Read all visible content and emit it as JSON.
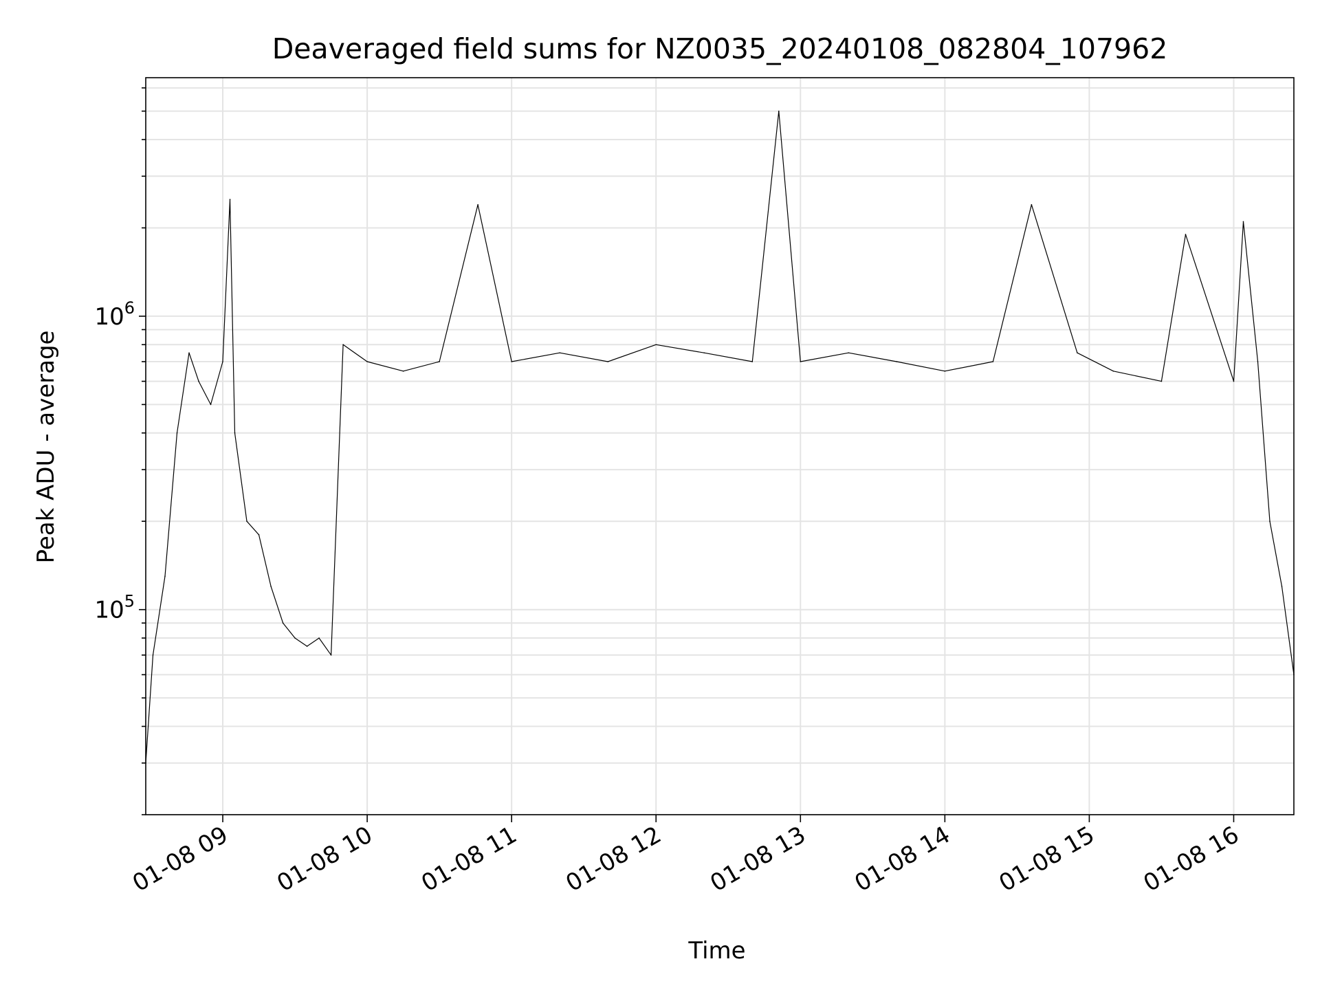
{
  "chart_data": {
    "type": "line",
    "title": "Deaveraged field sums for NZ0035_20240108_082804_107962",
    "xlabel": "Time",
    "ylabel": "Peak ADU - average",
    "x_scale": "time",
    "y_scale": "log",
    "xlim": [
      "2024-01-08 08:28",
      "2024-01-08 16:25"
    ],
    "ylim": [
      20000,
      6500000
    ],
    "x_ticks": [
      "01-08 09",
      "01-08 10",
      "01-08 11",
      "01-08 12",
      "01-08 13",
      "01-08 14",
      "01-08 15",
      "01-08 16"
    ],
    "y_ticks": [
      100000,
      1000000
    ],
    "grid": true,
    "line_color": "#000000",
    "series": [
      {
        "x": [
          "2024-01-08 08:28",
          "2024-01-08 08:31",
          "2024-01-08 08:36",
          "2024-01-08 08:41",
          "2024-01-08 08:46",
          "2024-01-08 08:50",
          "2024-01-08 08:55",
          "2024-01-08 09:00",
          "2024-01-08 09:03",
          "2024-01-08 09:05",
          "2024-01-08 09:10",
          "2024-01-08 09:15",
          "2024-01-08 09:20",
          "2024-01-08 09:25",
          "2024-01-08 09:30",
          "2024-01-08 09:35",
          "2024-01-08 09:40",
          "2024-01-08 09:45",
          "2024-01-08 09:50",
          "2024-01-08 10:00",
          "2024-01-08 10:15",
          "2024-01-08 10:30",
          "2024-01-08 10:46",
          "2024-01-08 11:00",
          "2024-01-08 11:20",
          "2024-01-08 11:40",
          "2024-01-08 12:00",
          "2024-01-08 12:20",
          "2024-01-08 12:40",
          "2024-01-08 12:51",
          "2024-01-08 13:00",
          "2024-01-08 13:20",
          "2024-01-08 13:40",
          "2024-01-08 14:00",
          "2024-01-08 14:20",
          "2024-01-08 14:36",
          "2024-01-08 14:55",
          "2024-01-08 15:10",
          "2024-01-08 15:30",
          "2024-01-08 15:40",
          "2024-01-08 16:00",
          "2024-01-08 16:04",
          "2024-01-08 16:10",
          "2024-01-08 16:15",
          "2024-01-08 16:20",
          "2024-01-08 16:25"
        ],
        "values": [
          30000,
          70000,
          130000,
          400000,
          750000,
          600000,
          500000,
          700000,
          2500000,
          400000,
          200000,
          180000,
          120000,
          90000,
          80000,
          75000,
          80000,
          70000,
          800000,
          700000,
          650000,
          700000,
          2400000,
          700000,
          750000,
          700000,
          800000,
          750000,
          700000,
          5000000,
          700000,
          750000,
          700000,
          650000,
          700000,
          2400000,
          750000,
          650000,
          600000,
          1900000,
          600000,
          2100000,
          700000,
          200000,
          120000,
          60000
        ]
      }
    ]
  }
}
